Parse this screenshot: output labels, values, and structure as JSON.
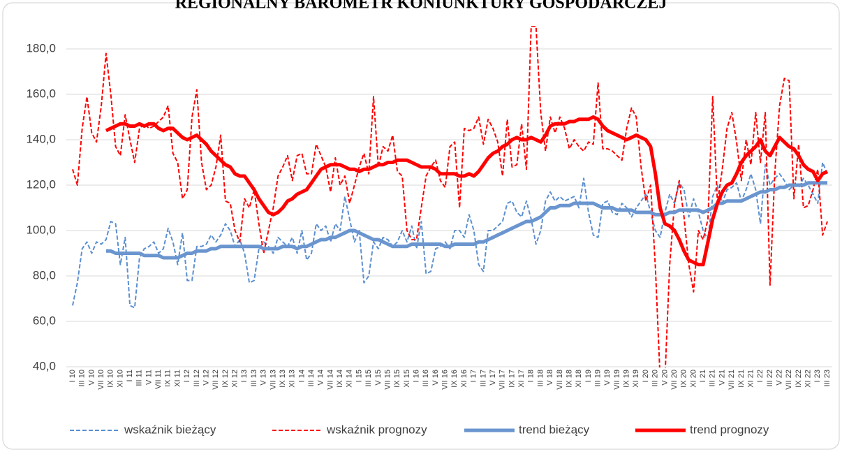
{
  "chart_data": {
    "type": "line",
    "title": "REGIONALNY BAROMETR KONIUNKTURY GOSPODARCZEJ",
    "categories": [
      "I 10",
      null,
      "III 10",
      null,
      "V 10",
      null,
      "VII 10",
      null,
      "IX 10",
      null,
      "XI 10",
      null,
      "I 11",
      null,
      "III 11",
      null,
      "V 11",
      null,
      "VII 11",
      null,
      "IX 11",
      null,
      "XI 11",
      null,
      "I 12",
      null,
      "III 12",
      null,
      "V 12",
      null,
      "VII 12",
      null,
      "IX 12",
      null,
      "XI 12",
      null,
      "I 13",
      null,
      "III 13",
      null,
      "V 13",
      null,
      "VII 13",
      null,
      "IX 13",
      null,
      "XI 13",
      null,
      "I 14",
      null,
      "III 14",
      null,
      "V 14",
      null,
      "VII 14",
      null,
      "IX 14",
      null,
      "XI 14",
      null,
      "I 15",
      null,
      "III 15",
      null,
      "V 15",
      null,
      "VII 15",
      null,
      "IX 15",
      null,
      "XI 15",
      null,
      "I 16",
      null,
      "III 16",
      null,
      "V 16",
      null,
      "VII 16",
      null,
      "IX 16",
      null,
      "XI 16",
      null,
      "I 17",
      null,
      "III 17",
      null,
      "V 17",
      null,
      "VII 17",
      null,
      "IX 17",
      null,
      "XI 17",
      null,
      "I 18",
      null,
      "III 18",
      null,
      "V 18",
      null,
      "VII 18",
      null,
      "IX 18",
      null,
      "XI 18",
      null,
      "I 19",
      null,
      "III 19",
      null,
      "V 19",
      null,
      "VII 19",
      null,
      "IX 19",
      null,
      "XI 19",
      null,
      "I 20",
      null,
      "III 20",
      null,
      "V 20",
      null,
      "VII 20",
      null,
      "IX 20",
      null,
      "XI 20",
      null,
      "I 21",
      null,
      "III 21",
      null,
      "V 21",
      null,
      "VII 21",
      null,
      "IX 21",
      null,
      "XI 21",
      null,
      "I 22",
      null,
      "III 22",
      null,
      "V 22",
      null,
      "VII 22",
      null,
      "IX 22",
      null,
      "XI 22",
      null,
      "I 23",
      null,
      "III 23"
    ],
    "series": [
      {
        "name": "wskaźnik bieżący",
        "color": "#5b8fd0",
        "style": "dashed",
        "values": [
          67,
          77,
          92,
          95,
          90,
          95,
          94,
          96,
          104,
          103,
          85,
          97,
          67,
          66,
          88,
          92,
          93,
          95,
          90,
          92,
          101,
          95,
          85,
          99,
          78,
          78,
          93,
          93,
          94,
          98,
          95,
          98,
          103,
          100,
          93,
          96,
          90,
          77,
          78,
          92,
          95,
          93,
          90,
          97,
          95,
          93,
          97,
          90,
          100,
          87,
          90,
          103,
          100,
          102,
          95,
          103,
          100,
          115,
          105,
          95,
          100,
          77,
          80,
          95,
          92,
          97,
          96,
          93,
          95,
          100,
          95,
          102,
          92,
          104,
          81,
          82,
          92,
          93,
          95,
          92,
          100,
          100,
          97,
          107,
          100,
          85,
          82,
          100,
          100,
          102,
          104,
          112,
          113,
          108,
          106,
          113,
          105,
          94,
          100,
          113,
          117,
          113,
          115,
          113,
          114,
          115,
          110,
          123,
          108,
          98,
          97,
          112,
          113,
          108,
          107,
          112,
          110,
          106,
          110,
          113,
          116,
          108,
          100,
          97,
          108,
          116,
          112,
          121,
          118,
          106,
          114,
          108,
          100,
          96,
          115,
          120,
          112,
          118,
          119,
          121,
          113,
          118,
          125,
          118,
          103,
          129,
          120,
          123,
          125,
          122,
          118,
          120,
          119,
          123,
          120,
          116,
          112,
          130,
          125
        ]
      },
      {
        "name": "wskaźnik prognozy",
        "color": "#ff0000",
        "style": "dashed",
        "values": [
          127,
          120,
          145,
          159,
          143,
          139,
          155,
          178,
          160,
          137,
          133,
          151,
          140,
          130,
          145,
          147,
          145,
          146,
          148,
          150,
          155,
          134,
          130,
          114,
          118,
          150,
          162,
          130,
          118,
          120,
          128,
          142,
          113,
          112,
          100,
          95,
          114,
          110,
          118,
          103,
          90,
          100,
          110,
          124,
          128,
          133,
          122,
          133,
          134,
          125,
          125,
          138,
          133,
          128,
          117,
          132,
          120,
          124,
          112,
          120,
          128,
          134,
          125,
          159,
          128,
          137,
          135,
          142,
          126,
          124,
          100,
          96,
          96,
          110,
          124,
          128,
          131,
          122,
          119,
          137,
          139,
          110,
          145,
          144,
          145,
          150,
          138,
          149,
          145,
          139,
          124,
          149,
          128,
          129,
          147,
          127,
          190,
          190,
          152,
          135,
          150,
          143,
          150,
          145,
          136,
          140,
          137,
          135,
          139,
          138,
          165,
          136,
          136,
          135,
          133,
          131,
          145,
          154,
          150,
          128,
          113,
          120,
          84,
          35,
          35,
          85,
          112,
          122,
          106,
          85,
          73,
          100,
          96,
          105,
          159,
          112,
          127,
          145,
          152,
          139,
          122,
          140,
          129,
          152,
          130,
          152,
          76,
          125,
          155,
          167,
          166,
          114,
          138,
          110,
          111,
          118,
          127,
          98,
          104
        ]
      },
      {
        "name": "trend bieżący",
        "color": "#6a95cf",
        "style": "solid",
        "values": [
          null,
          null,
          null,
          null,
          null,
          null,
          null,
          91,
          91,
          90,
          90,
          90,
          90,
          90,
          90,
          89,
          89,
          89,
          89,
          88,
          88,
          88,
          88,
          89,
          90,
          90,
          91,
          91,
          91,
          92,
          92,
          93,
          93,
          93,
          93,
          93,
          93,
          93,
          93,
          93,
          92,
          92,
          92,
          92,
          93,
          93,
          93,
          92,
          93,
          93,
          94,
          95,
          96,
          96,
          97,
          97,
          98,
          99,
          100,
          100,
          99,
          98,
          97,
          96,
          96,
          95,
          94,
          93,
          93,
          93,
          93,
          94,
          94,
          94,
          94,
          94,
          94,
          94,
          93,
          93,
          94,
          94,
          94,
          94,
          94,
          95,
          95,
          96,
          97,
          98,
          99,
          100,
          101,
          102,
          103,
          104,
          104,
          105,
          106,
          108,
          110,
          110,
          111,
          111,
          111,
          112,
          112,
          112,
          112,
          112,
          111,
          110,
          110,
          110,
          109,
          109,
          109,
          109,
          108,
          108,
          108,
          108,
          107,
          107,
          107,
          108,
          108,
          109,
          109,
          109,
          109,
          109,
          108,
          109,
          110,
          112,
          112,
          113,
          113,
          113,
          113,
          114,
          115,
          116,
          117,
          117,
          118,
          118,
          119,
          119,
          120,
          120,
          120,
          120,
          121,
          121,
          121,
          121,
          121
        ]
      },
      {
        "name": "trend prognozy",
        "color": "#ff0000",
        "style": "solid",
        "values": [
          null,
          null,
          null,
          null,
          null,
          null,
          null,
          144,
          145,
          146,
          147,
          147,
          146,
          146,
          147,
          146,
          147,
          147,
          145,
          144,
          145,
          145,
          143,
          141,
          140,
          141,
          142,
          140,
          138,
          135,
          133,
          131,
          129,
          128,
          125,
          124,
          124,
          121,
          118,
          114,
          111,
          108,
          107,
          108,
          110,
          113,
          114,
          116,
          117,
          118,
          121,
          124,
          127,
          128,
          129,
          129,
          129,
          128,
          127,
          127,
          126,
          127,
          127,
          128,
          129,
          129,
          130,
          130,
          131,
          131,
          131,
          130,
          129,
          128,
          128,
          128,
          127,
          125,
          125,
          125,
          125,
          124,
          124,
          125,
          124,
          126,
          129,
          132,
          134,
          135,
          137,
          138,
          140,
          141,
          140,
          140,
          141,
          140,
          139,
          142,
          146,
          147,
          147,
          147,
          148,
          148,
          149,
          149,
          149,
          150,
          149,
          146,
          144,
          143,
          142,
          141,
          140,
          141,
          142,
          141,
          140,
          137,
          125,
          110,
          103,
          102,
          100,
          96,
          91,
          87,
          86,
          85,
          85,
          95,
          105,
          112,
          117,
          120,
          121,
          125,
          130,
          133,
          135,
          137,
          140,
          135,
          133,
          137,
          141,
          139,
          137,
          136,
          133,
          129,
          127,
          126,
          122,
          125,
          126
        ]
      }
    ],
    "ylim": [
      40,
      190
    ],
    "yticks": [
      {
        "value": 40,
        "label": "40,0"
      },
      {
        "value": 60,
        "label": "60,0"
      },
      {
        "value": 80,
        "label": "80,0"
      },
      {
        "value": 100,
        "label": "100,0"
      },
      {
        "value": 120,
        "label": "120,0"
      },
      {
        "value": 140,
        "label": "140,0"
      },
      {
        "value": 160,
        "label": "160,0"
      },
      {
        "value": 180,
        "label": "180,0"
      }
    ],
    "grid": true,
    "legend": "bottom"
  }
}
